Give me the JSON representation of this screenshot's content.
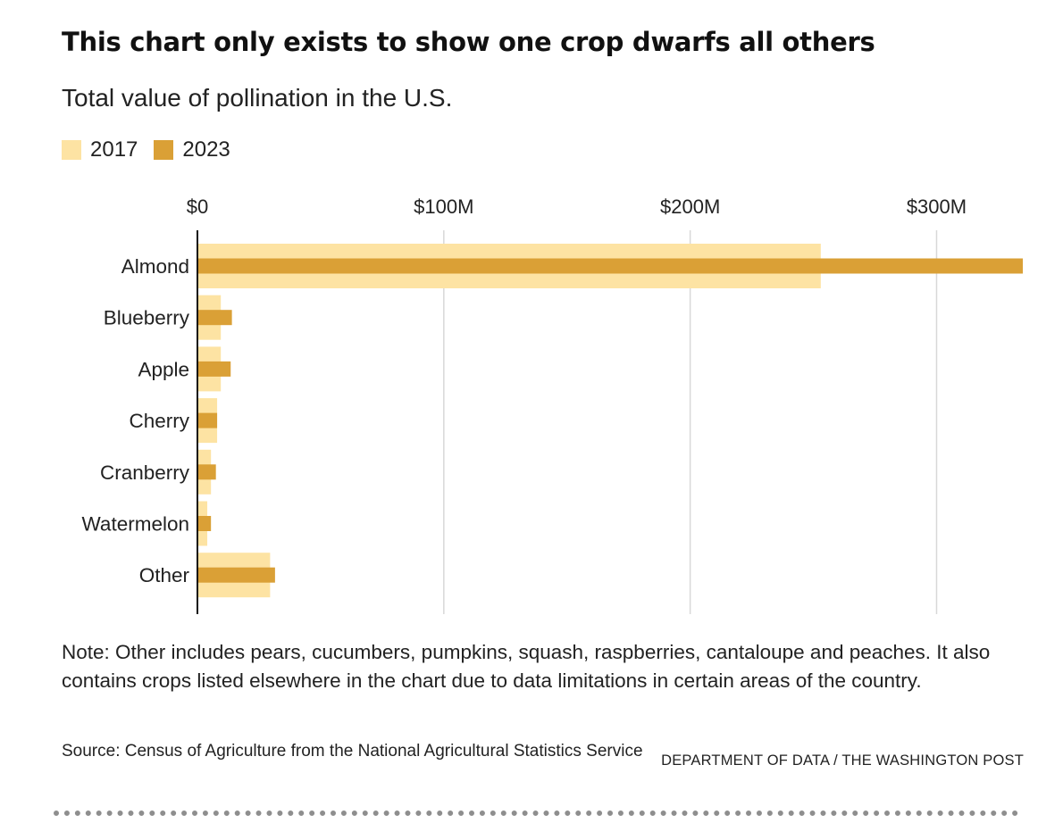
{
  "title": "This chart only exists to show one crop dwarfs all others",
  "subtitle": "Total value of pollination in the U.S.",
  "legend": [
    {
      "label": "2017",
      "color": "#fde3a3"
    },
    {
      "label": "2023",
      "color": "#daa036"
    }
  ],
  "chart_data": {
    "type": "bar",
    "orientation": "horizontal",
    "categories": [
      "Almond",
      "Blueberry",
      "Apple",
      "Cherry",
      "Cranberry",
      "Watermelon",
      "Other"
    ],
    "series": [
      {
        "name": "2017",
        "color": "#fde3a3",
        "values": [
          253,
          9.5,
          9.5,
          8,
          5.5,
          4,
          29.5
        ]
      },
      {
        "name": "2023",
        "color": "#daa036",
        "values": [
          335,
          14,
          13.5,
          8,
          7.5,
          5.5,
          31.5
        ]
      }
    ],
    "x_ticks": [
      0,
      100,
      200,
      300
    ],
    "x_tick_labels": [
      "$0",
      "$100M",
      "$200M",
      "$300M"
    ],
    "xlim": [
      0,
      335
    ],
    "xlabel": "",
    "ylabel": "",
    "grid": true,
    "legend_position": "top-left"
  },
  "note": "Note: Other includes pears, cucumbers, pumpkins, squash, raspberries, cantaloupe and peaches. It also contains crops listed elsewhere in the chart due to data limitations in certain areas of the country.",
  "source": "Source: Census of Agriculture from the National Agricultural Statistics Service",
  "credit": "DEPARTMENT OF DATA / THE WASHINGTON POST"
}
